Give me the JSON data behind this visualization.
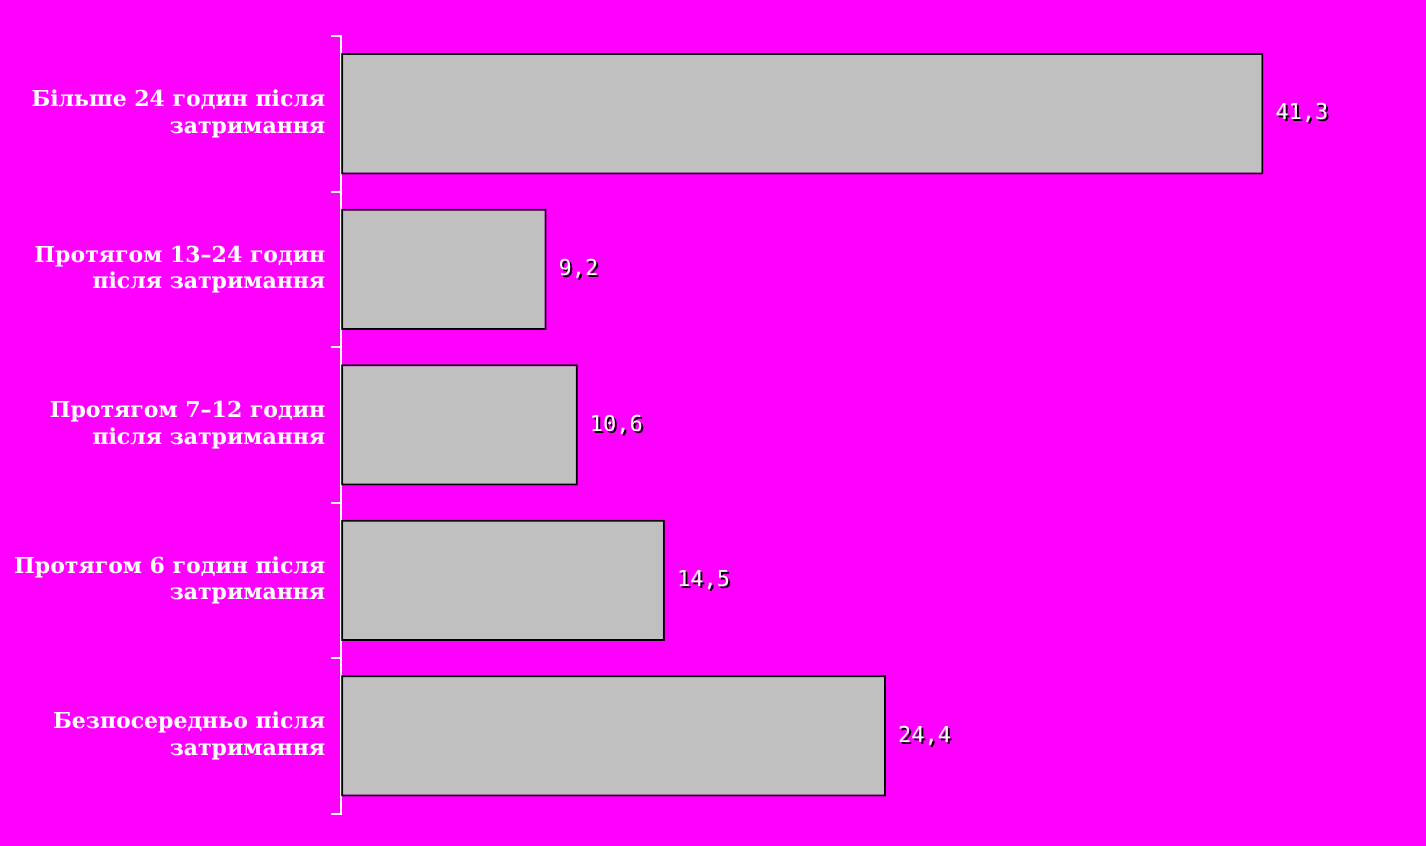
{
  "chart_data": {
    "type": "bar",
    "orientation": "horizontal",
    "categories": [
      "Більше 24 годин після затримання",
      "Протягом 13–24 годин після затримання",
      "Протягом 7–12 годин після затримання",
      "Протягом 6 годин після затримання",
      "Безпосередньо після затримання"
    ],
    "values": [
      41.3,
      9.2,
      10.6,
      14.5,
      24.4
    ],
    "value_labels": [
      "41,3",
      "9,2",
      "10,6",
      "14,5",
      "24,4"
    ],
    "color": "#c0c0c0",
    "tick_labels": "y",
    "legend": false
  }
}
